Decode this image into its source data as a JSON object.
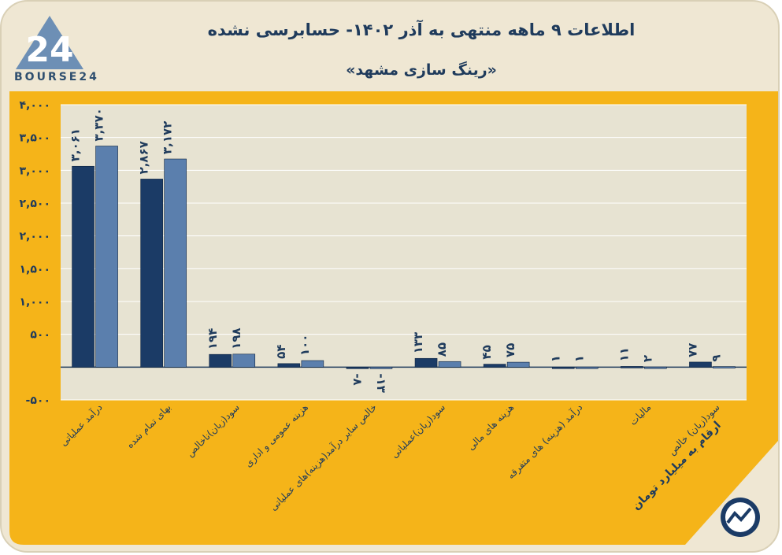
{
  "header": {
    "title": "اطلاعات ۹ ماهه منتهی به آذر ۱۴۰۲- حسابرسی نشده",
    "subtitle": "«رینگ سازی مشهد»",
    "logo_text": "BOURSE24"
  },
  "footer": {
    "note": "ارقام به میلیارد تومان"
  },
  "colors": {
    "background": "#efe7d3",
    "panel": "#f5b419",
    "plot": "#e7e3d2",
    "series1": "#1b3b66",
    "series2": "#5b7fad",
    "text": "#1f3b5c"
  },
  "chart_data": {
    "type": "bar",
    "title": "اطلاعات ۹ ماهه منتهی به آذر ۱۴۰۲- حسابرسی نشده",
    "subtitle": "«رینگ سازی مشهد»",
    "ylim": [
      -500,
      4000
    ],
    "yticks": [
      -500,
      500,
      1000,
      1500,
      2000,
      2500,
      3000,
      3500,
      4000
    ],
    "ytick_labels": [
      "-۵۰۰",
      "۵۰۰",
      "۱,۰۰۰",
      "۱,۵۰۰",
      "۲,۰۰۰",
      "۲,۵۰۰",
      "۳,۰۰۰",
      "۳,۵۰۰",
      "۴,۰۰۰"
    ],
    "grid": true,
    "categories": [
      "درآمد عملیاتی",
      "بهای تمام شده",
      "سود(زیان)ناخالص",
      "هزینه عمومی و اداری",
      "خالص سایر درآمد(هزینه)های عملیاتی",
      "سود(زیان)عملیاتی",
      "هزینه های مالی",
      "درآمد (هزینه) های متفرقه",
      "مالیات",
      "سود(زیان) خالص"
    ],
    "series": [
      {
        "values": [
          3061,
          2867,
          194,
          54,
          -8,
          133,
          45,
          1,
          11,
          77
        ],
        "labels": [
          "۳,۰۶۱",
          "۲,۸۶۷",
          "۱۹۴",
          "۵۴",
          "-۸",
          "۱۳۳",
          "۴۵",
          "۱",
          "۱۱",
          "۷۷"
        ]
      },
      {
        "values": [
          3370,
          3172,
          198,
          100,
          -13,
          85,
          75,
          1,
          2,
          9
        ],
        "labels": [
          "۳,۳۷۰",
          "۳,۱۷۲",
          "۱۹۸",
          "۱۰۰",
          "-۱۳",
          "۸۵",
          "۷۵",
          "۱",
          "۲",
          "۹"
        ]
      }
    ]
  }
}
